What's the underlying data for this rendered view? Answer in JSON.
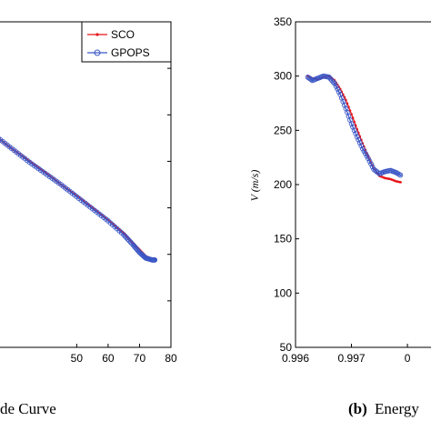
{
  "chart_data": [
    {
      "type": "line",
      "title": "",
      "xlabel": "",
      "ylabel": "",
      "x_ticks": [
        "50",
        "60",
        "70",
        "80"
      ],
      "xlim": [
        25,
        80
      ],
      "ylim": [
        0,
        350
      ],
      "grid": false,
      "legend": "top-right",
      "caption": "de Curve",
      "series": [
        {
          "name": "SCO",
          "color": "#e8141b",
          "marker": "dot",
          "x": [
            25,
            30,
            35,
            40,
            45,
            50,
            55,
            60,
            65,
            68,
            70,
            72,
            74
          ],
          "y": [
            225,
            212,
            200,
            188,
            175,
            163,
            150,
            137,
            123,
            112,
            105,
            98,
            95
          ]
        },
        {
          "name": "GPOPS",
          "color": "#3b57c6",
          "marker": "circle",
          "x": [
            25,
            30,
            35,
            40,
            45,
            50,
            55,
            60,
            65,
            68,
            70,
            72,
            74,
            75
          ],
          "y": [
            225,
            212,
            199,
            187,
            175,
            162,
            149,
            136,
            121,
            110,
            102,
            96,
            94,
            94
          ]
        }
      ]
    },
    {
      "type": "line",
      "title": "",
      "xlabel": "",
      "ylabel": "V (m/s)",
      "x_ticks": [
        "0.996",
        "0.997",
        "0"
      ],
      "y_ticks": [
        "50",
        "100",
        "150",
        "200",
        "250",
        "300",
        "350"
      ],
      "xlim": [
        0.996,
        0.9986
      ],
      "ylim": [
        50,
        350
      ],
      "grid": false,
      "caption_label": "(b)",
      "caption": "Energy",
      "series": [
        {
          "name": "SCO",
          "color": "#e8141b",
          "marker": "dot",
          "x": [
            0.99622,
            0.9963,
            0.9964,
            0.9965,
            0.9966,
            0.9967,
            0.9968,
            0.9969,
            0.997,
            0.9971,
            0.9972,
            0.9973,
            0.9974,
            0.9975,
            0.9976,
            0.9977,
            0.9978,
            0.9979
          ],
          "y": [
            300,
            298,
            297,
            299,
            300,
            296,
            288,
            278,
            265,
            251,
            238,
            226,
            215,
            208,
            206,
            205,
            203,
            202
          ]
        },
        {
          "name": "GPOPS",
          "color": "#3b57c6",
          "marker": "circle",
          "x": [
            0.99622,
            0.9963,
            0.9964,
            0.9965,
            0.9966,
            0.9967,
            0.9968,
            0.9969,
            0.997,
            0.9971,
            0.9972,
            0.9973,
            0.9974,
            0.9975,
            0.9976,
            0.9977,
            0.9978,
            0.9979
          ],
          "y": [
            299,
            296,
            298,
            300,
            299,
            293,
            283,
            270,
            256,
            244,
            233,
            224,
            214,
            210,
            212,
            213,
            211,
            208
          ]
        }
      ]
    }
  ]
}
